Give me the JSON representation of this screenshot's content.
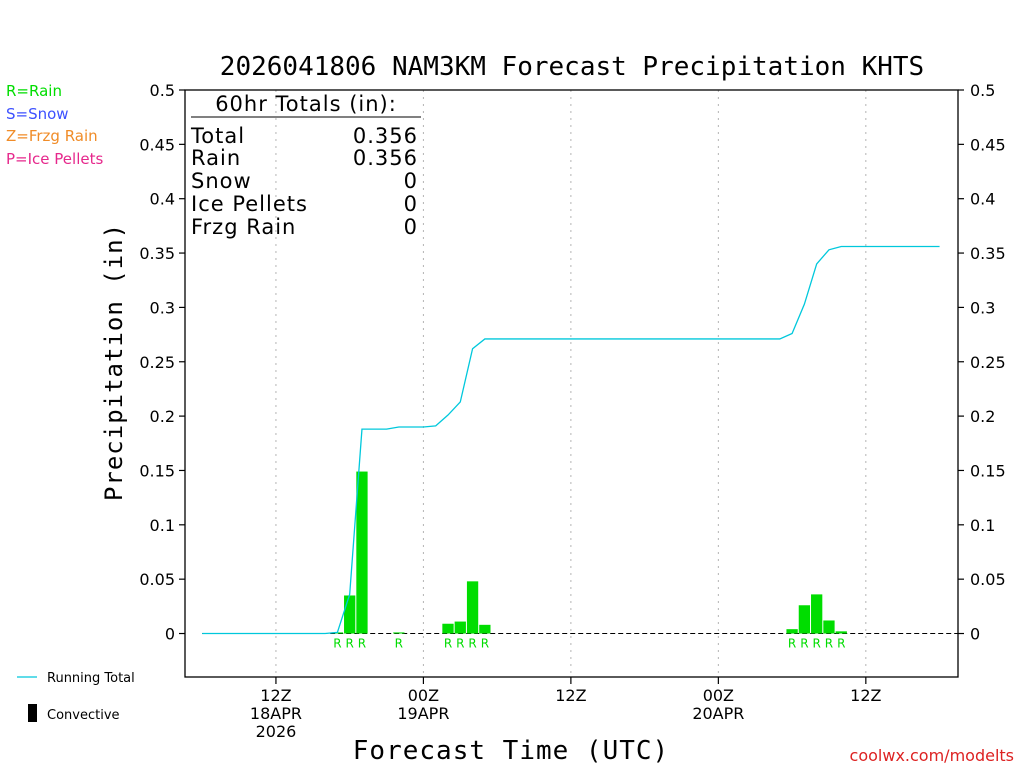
{
  "chart_data": {
    "type": "bar+line",
    "title": "2026041806 NAM3KM Forecast Precipitation KHTS",
    "xlabel": "Forecast Time (UTC)",
    "ylabel": "Precipitation (in)",
    "ylim": [
      -0.04,
      0.5
    ],
    "xlim": [
      -1.4,
      61.5
    ],
    "yticks": [
      0,
      0.05,
      0.1,
      0.15,
      0.2,
      0.25,
      0.3,
      0.35,
      0.4,
      0.45,
      0.5
    ],
    "ytick_labels": [
      "0",
      "0.05",
      "0.1",
      "0.15",
      "0.2",
      "0.25",
      "0.3",
      "0.35",
      "0.4",
      "0.45",
      "0.5"
    ],
    "xticks": [
      {
        "hour": 6,
        "lines": [
          "12Z",
          "18APR",
          "2026"
        ]
      },
      {
        "hour": 18,
        "lines": [
          "00Z",
          "19APR"
        ]
      },
      {
        "hour": 30,
        "lines": [
          "12Z"
        ]
      },
      {
        "hour": 42,
        "lines": [
          "00Z",
          "20APR"
        ]
      },
      {
        "hour": 54,
        "lines": [
          "12Z"
        ]
      }
    ],
    "series": [
      {
        "name": "Precipitation",
        "type": "bar",
        "color": "#00dd00",
        "x": [
          11,
          12,
          13,
          16,
          20,
          21,
          22,
          23,
          48,
          49,
          50,
          51,
          52
        ],
        "values": [
          0.001,
          0.035,
          0.149,
          0.001,
          0.009,
          0.011,
          0.048,
          0.008,
          0.004,
          0.026,
          0.036,
          0.012,
          0.002
        ],
        "labels": [
          "R",
          "R",
          "R",
          "R",
          "R",
          "R",
          "R",
          "R",
          "R",
          "R",
          "R",
          "R",
          "R"
        ]
      },
      {
        "name": "Running Total",
        "type": "line",
        "color": "#00c8dc",
        "x": [
          0,
          1,
          2,
          3,
          4,
          5,
          6,
          7,
          8,
          9,
          10,
          11,
          12,
          13,
          14,
          15,
          16,
          17,
          18,
          19,
          20,
          21,
          22,
          23,
          24,
          25,
          26,
          27,
          28,
          29,
          30,
          31,
          32,
          33,
          34,
          35,
          36,
          37,
          38,
          39,
          40,
          41,
          42,
          43,
          44,
          45,
          46,
          47,
          48,
          49,
          50,
          51,
          52,
          53,
          54,
          55,
          56,
          57,
          58,
          59,
          60
        ],
        "values": [
          0,
          0,
          0,
          0,
          0,
          0,
          0,
          0,
          0,
          0,
          0,
          0.001,
          0.036,
          0.188,
          0.188,
          0.188,
          0.19,
          0.19,
          0.19,
          0.191,
          0.201,
          0.213,
          0.262,
          0.271,
          0.271,
          0.271,
          0.271,
          0.271,
          0.271,
          0.271,
          0.271,
          0.271,
          0.271,
          0.271,
          0.271,
          0.271,
          0.271,
          0.271,
          0.271,
          0.271,
          0.271,
          0.271,
          0.271,
          0.271,
          0.271,
          0.271,
          0.271,
          0.271,
          0.276,
          0.303,
          0.34,
          0.353,
          0.356,
          0.356,
          0.356,
          0.356,
          0.356,
          0.356,
          0.356,
          0.356,
          0.356
        ]
      }
    ]
  },
  "totals": {
    "heading": "60hr Totals (in):",
    "rows": [
      {
        "label": "Total",
        "value": "0.356"
      },
      {
        "label": "Rain",
        "value": "0.356"
      },
      {
        "label": "Snow",
        "value": "0"
      },
      {
        "label": "Ice Pellets",
        "value": "0"
      },
      {
        "label": "Frzg Rain",
        "value": "0"
      }
    ]
  },
  "legend_keys": [
    {
      "text": "R=Rain",
      "color": "#00dd00"
    },
    {
      "text": "S=Snow",
      "color": "#3c50ff"
    },
    {
      "text": "Z=Frzg Rain",
      "color": "#f08c28"
    },
    {
      "text": "P=Ice Pellets",
      "color": "#e6288c"
    }
  ],
  "bottom_legend": {
    "running_total": "Running Total",
    "convective": "Convective"
  },
  "footer": "coolwx.com/modelts",
  "colors": {
    "rain": "#00dd00",
    "line": "#00c8dc",
    "footer": "#dd2222",
    "grid": "#b4b4b4"
  }
}
